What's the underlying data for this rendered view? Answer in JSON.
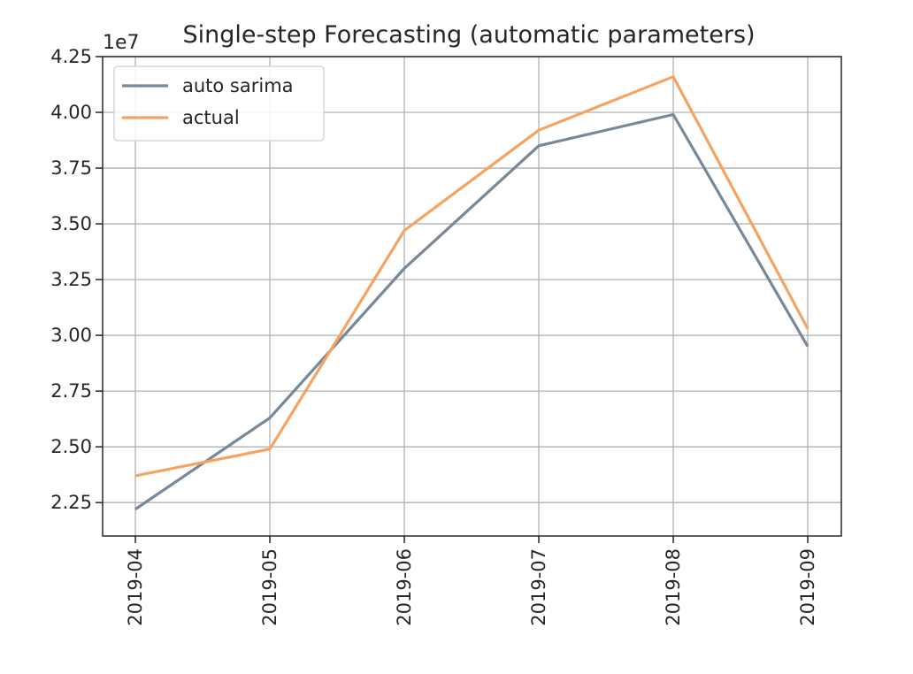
{
  "chart_data": {
    "type": "line",
    "title": "Single-step Forecasting (automatic parameters)",
    "xlabel": "",
    "ylabel": "",
    "y_offset_label": "1e7",
    "categories": [
      "2019-04",
      "2019-05",
      "2019-06",
      "2019-07",
      "2019-08",
      "2019-09"
    ],
    "yticks": [
      2.25,
      2.5,
      2.75,
      3.0,
      3.25,
      3.5,
      3.75,
      4.0,
      4.25
    ],
    "ytick_labels": [
      "2.25",
      "2.50",
      "2.75",
      "3.00",
      "3.25",
      "3.50",
      "3.75",
      "4.00",
      "4.25"
    ],
    "ylim": [
      2.1,
      4.25
    ],
    "scale_note": "values in units of 1e7",
    "grid": true,
    "legend_position": "upper-left",
    "series": [
      {
        "name": "auto sarima",
        "color": "#778899",
        "values": [
          2.22,
          2.63,
          3.3,
          3.85,
          3.99,
          2.95
        ]
      },
      {
        "name": "actual",
        "color": "#f4a460",
        "values": [
          2.37,
          2.49,
          3.47,
          3.92,
          4.16,
          3.03
        ]
      }
    ]
  }
}
